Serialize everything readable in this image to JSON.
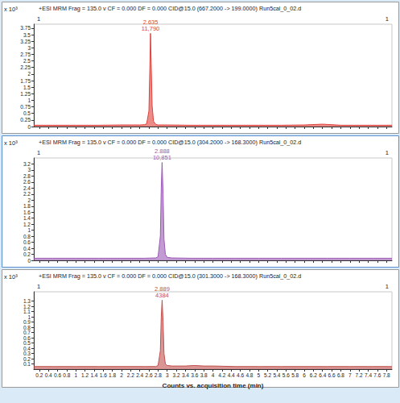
{
  "chart_data": [
    {
      "type": "line",
      "title": "+ESI MRM Frag = 135.0 v CF = 0.000 DF = 0.000 CID@15.0 (667.2000 -> 199.0000) Run5cal_0_02.d",
      "y_scale_label": "x 10³",
      "corner_labels": [
        "1",
        "1"
      ],
      "color": "#e0403a",
      "x": [
        0.08,
        0.5,
        1,
        1.5,
        2,
        2.4,
        2.5,
        2.55,
        2.6,
        2.62,
        2.635,
        2.65,
        2.67,
        2.7,
        2.75,
        2.8,
        3,
        3.5,
        4,
        4.5,
        5,
        5.5,
        6,
        6.4,
        6.8,
        7.2,
        7.6,
        7.92
      ],
      "values": [
        0.05,
        0.05,
        0.05,
        0.05,
        0.06,
        0.06,
        0.07,
        0.1,
        0.6,
        2.2,
        3.55,
        2.4,
        0.8,
        0.2,
        0.08,
        0.06,
        0.06,
        0.05,
        0.05,
        0.05,
        0.05,
        0.05,
        0.06,
        0.09,
        0.05,
        0.05,
        0.05,
        0.05
      ],
      "peak": {
        "x": 2.635,
        "area": {
          "value": 11790,
          "label": "11,790"
        }
      },
      "xlim": [
        0.08,
        7.92
      ],
      "xticks": [
        0.2,
        0.4,
        0.6,
        0.8,
        1,
        1.2,
        1.4,
        1.6,
        1.8,
        2,
        2.2,
        2.4,
        2.6,
        2.8,
        3,
        3.2,
        3.4,
        3.6,
        3.8,
        4,
        4.2,
        4.4,
        4.6,
        4.8,
        5,
        5.2,
        5.4,
        5.6,
        5.8,
        6,
        6.2,
        6.4,
        6.6,
        6.8,
        7,
        7.2,
        7.4,
        7.6,
        7.8
      ],
      "ylim": [
        0,
        3.9
      ],
      "yticks": [
        0,
        0.25,
        0.5,
        0.75,
        1,
        1.25,
        1.5,
        1.75,
        2,
        2.25,
        2.5,
        2.75,
        3,
        3.25,
        3.5,
        3.75
      ],
      "grid": false,
      "tick_labels": "y"
    },
    {
      "type": "line",
      "title": "+ESI MRM Frag = 135.0 v CF = 0.000 DF = 0.000 CID@15.0 (304.2000 -> 168.3000) Run5cal_0_02.d",
      "y_scale_label": "x 10³",
      "corner_labels": [
        "1",
        "1"
      ],
      "color": "#9b59b6",
      "x": [
        0.08,
        0.5,
        1,
        1.5,
        2,
        2.5,
        2.75,
        2.8,
        2.85,
        2.87,
        2.888,
        2.91,
        2.93,
        2.96,
        3,
        3.1,
        3.5,
        4,
        4.5,
        5,
        5.5,
        6,
        6.5,
        7,
        7.5,
        7.92
      ],
      "values": [
        0.07,
        0.07,
        0.07,
        0.07,
        0.07,
        0.07,
        0.08,
        0.12,
        0.8,
        2.4,
        3.25,
        2.2,
        0.7,
        0.2,
        0.1,
        0.08,
        0.07,
        0.07,
        0.07,
        0.07,
        0.07,
        0.07,
        0.07,
        0.07,
        0.07,
        0.07
      ],
      "peak": {
        "x": 2.888,
        "area": {
          "value": 10851,
          "label": "10,851"
        }
      },
      "xlim": [
        0.08,
        7.92
      ],
      "xticks": [
        0.2,
        0.4,
        0.6,
        0.8,
        1,
        1.2,
        1.4,
        1.6,
        1.8,
        2,
        2.2,
        2.4,
        2.6,
        2.8,
        3,
        3.2,
        3.4,
        3.6,
        3.8,
        4,
        4.2,
        4.4,
        4.6,
        4.8,
        5,
        5.2,
        5.4,
        5.6,
        5.8,
        6,
        6.2,
        6.4,
        6.6,
        6.8,
        7,
        7.2,
        7.4,
        7.6,
        7.8
      ],
      "ylim": [
        0,
        3.4
      ],
      "yticks": [
        0,
        0.2,
        0.4,
        0.6,
        0.8,
        1,
        1.2,
        1.4,
        1.6,
        1.8,
        2,
        2.2,
        2.4,
        2.6,
        2.8,
        3,
        3.2
      ],
      "grid": false,
      "tick_labels": "y"
    },
    {
      "type": "line",
      "title": "+ESI MRM Frag = 135.0 v CF = 0.000 DF = 0.000 CID@15.0 (301.3000 -> 168.3000) Run5cal_0_02.d",
      "y_scale_label": "x 10³",
      "corner_labels": [
        "1",
        "1"
      ],
      "color": "#c0504d",
      "x": [
        0.08,
        0.5,
        1,
        1.5,
        2,
        2.5,
        2.75,
        2.8,
        2.85,
        2.87,
        2.889,
        2.91,
        2.93,
        2.96,
        3,
        3.1,
        3.4,
        3.6,
        3.8,
        4,
        4.5,
        5,
        5.5,
        6,
        6.5,
        7,
        7.5,
        7.92
      ],
      "values": [
        0.05,
        0.05,
        0.05,
        0.05,
        0.05,
        0.05,
        0.05,
        0.07,
        0.35,
        1.0,
        1.32,
        0.9,
        0.3,
        0.1,
        0.07,
        0.06,
        0.06,
        0.07,
        0.06,
        0.06,
        0.05,
        0.05,
        0.05,
        0.05,
        0.05,
        0.05,
        0.05,
        0.05
      ],
      "peak": {
        "x": 2.889,
        "area": 4384
      },
      "xlim": [
        0.08,
        7.92
      ],
      "xticks": [
        0.2,
        0.4,
        0.6,
        0.8,
        1,
        1.2,
        1.4,
        1.6,
        1.8,
        2,
        2.2,
        2.4,
        2.6,
        2.8,
        3,
        3.2,
        3.4,
        3.6,
        3.8,
        4,
        4.2,
        4.4,
        4.6,
        4.8,
        5,
        5.2,
        5.4,
        5.6,
        5.8,
        6,
        6.2,
        6.4,
        6.6,
        6.8,
        7,
        7.2,
        7.4,
        7.6,
        7.8
      ],
      "ylim": [
        0,
        1.48
      ],
      "yticks": [
        0,
        0.1,
        0.2,
        0.3,
        0.4,
        0.5,
        0.6,
        0.7,
        0.8,
        0.9,
        1,
        1.1,
        1.2,
        1.3,
        1.4
      ],
      "xlabel": "Counts vs. acquisition time (min)",
      "grid": false,
      "tick_labels": true
    }
  ]
}
